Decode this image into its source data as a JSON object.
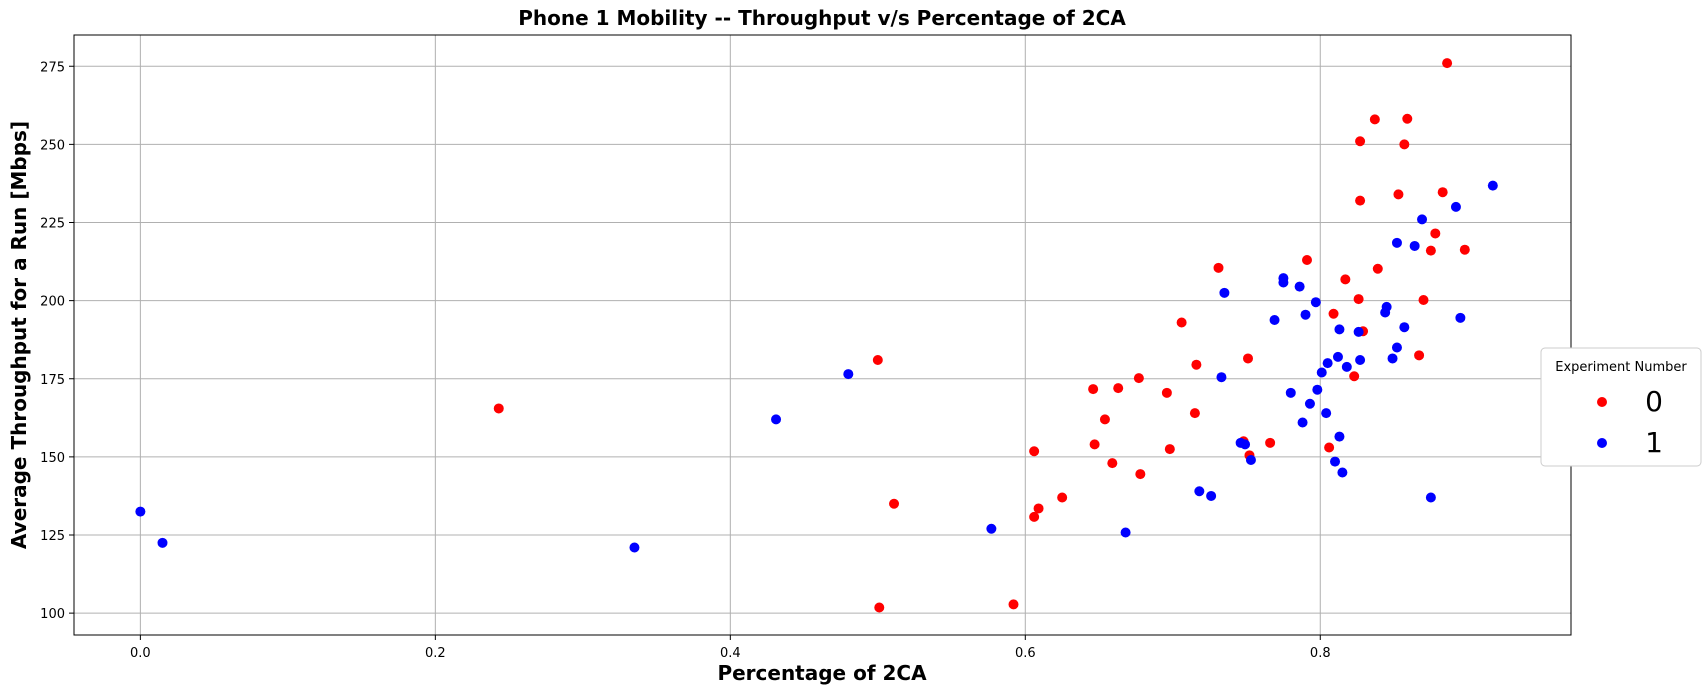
{
  "chart_data": {
    "type": "scatter",
    "title": "Phone 1 Mobility -- Throughput v/s Percentage of 2CA",
    "xlabel": "Percentage of 2CA",
    "ylabel": "Average Throughput for a Run [Mbps]",
    "xlim": [
      -0.045,
      0.97
    ],
    "ylim": [
      93,
      285
    ],
    "xticks": [
      0.0,
      0.2,
      0.4,
      0.6,
      0.8
    ],
    "xtick_labels": [
      "0.0",
      "0.2",
      "0.4",
      "0.6",
      "0.8"
    ],
    "yticks": [
      100,
      125,
      150,
      175,
      200,
      225,
      250,
      275
    ],
    "ytick_labels": [
      "100",
      "125",
      "150",
      "175",
      "200",
      "225",
      "250",
      "275"
    ],
    "grid": true,
    "legend": {
      "title": "Experiment Number",
      "placement": "center-right outside"
    },
    "series": [
      {
        "name": "0",
        "color": "#ff0000",
        "points": [
          [
            0.243,
            165.5
          ],
          [
            0.5,
            181.0
          ],
          [
            0.501,
            101.8
          ],
          [
            0.511,
            135.0
          ],
          [
            0.592,
            102.8
          ],
          [
            0.606,
            151.8
          ],
          [
            0.606,
            130.8
          ],
          [
            0.609,
            133.5
          ],
          [
            0.625,
            137.0
          ],
          [
            0.646,
            171.7
          ],
          [
            0.647,
            154.0
          ],
          [
            0.654,
            162.0
          ],
          [
            0.659,
            148.0
          ],
          [
            0.663,
            172.0
          ],
          [
            0.677,
            175.2
          ],
          [
            0.678,
            144.5
          ],
          [
            0.696,
            170.5
          ],
          [
            0.698,
            152.5
          ],
          [
            0.706,
            193.0
          ],
          [
            0.715,
            164.0
          ],
          [
            0.716,
            179.5
          ],
          [
            0.731,
            210.5
          ],
          [
            0.748,
            155.0
          ],
          [
            0.751,
            181.5
          ],
          [
            0.752,
            150.5
          ],
          [
            0.766,
            154.5
          ],
          [
            0.791,
            213.0
          ],
          [
            0.806,
            153.0
          ],
          [
            0.809,
            195.8
          ],
          [
            0.817,
            206.8
          ],
          [
            0.823,
            175.8
          ],
          [
            0.826,
            200.5
          ],
          [
            0.827,
            251.0
          ],
          [
            0.827,
            232.0
          ],
          [
            0.829,
            190.2
          ],
          [
            0.837,
            258.0
          ],
          [
            0.839,
            210.2
          ],
          [
            0.853,
            234.0
          ],
          [
            0.857,
            250.0
          ],
          [
            0.859,
            258.2
          ],
          [
            0.867,
            182.5
          ],
          [
            0.87,
            200.2
          ],
          [
            0.875,
            216.0
          ],
          [
            0.878,
            221.5
          ],
          [
            0.883,
            234.7
          ],
          [
            0.886,
            276.0
          ],
          [
            0.898,
            216.3
          ]
        ]
      },
      {
        "name": "1",
        "color": "#0000ff",
        "points": [
          [
            0.0,
            132.5
          ],
          [
            0.015,
            122.5
          ],
          [
            0.335,
            121.0
          ],
          [
            0.431,
            162.0
          ],
          [
            0.48,
            176.5
          ],
          [
            0.577,
            127.0
          ],
          [
            0.668,
            125.8
          ],
          [
            0.718,
            139.0
          ],
          [
            0.726,
            137.5
          ],
          [
            0.733,
            175.5
          ],
          [
            0.735,
            202.5
          ],
          [
            0.746,
            154.5
          ],
          [
            0.749,
            154.0
          ],
          [
            0.753,
            149.0
          ],
          [
            0.769,
            193.8
          ],
          [
            0.775,
            207.2
          ],
          [
            0.775,
            205.8
          ],
          [
            0.78,
            170.5
          ],
          [
            0.786,
            204.5
          ],
          [
            0.788,
            161.0
          ],
          [
            0.79,
            195.5
          ],
          [
            0.793,
            167.0
          ],
          [
            0.797,
            199.5
          ],
          [
            0.798,
            171.5
          ],
          [
            0.801,
            177.0
          ],
          [
            0.804,
            164.0
          ],
          [
            0.805,
            180.0
          ],
          [
            0.81,
            148.5
          ],
          [
            0.812,
            182.0
          ],
          [
            0.813,
            156.5
          ],
          [
            0.813,
            190.8
          ],
          [
            0.815,
            145.0
          ],
          [
            0.818,
            178.8
          ],
          [
            0.826,
            190.0
          ],
          [
            0.827,
            181.0
          ],
          [
            0.844,
            196.2
          ],
          [
            0.845,
            198.0
          ],
          [
            0.849,
            181.5
          ],
          [
            0.852,
            218.5
          ],
          [
            0.852,
            185.0
          ],
          [
            0.857,
            191.5
          ],
          [
            0.864,
            217.5
          ],
          [
            0.869,
            226.0
          ],
          [
            0.875,
            137.0
          ],
          [
            0.892,
            230.0
          ],
          [
            0.895,
            194.5
          ],
          [
            0.917,
            236.8
          ]
        ]
      }
    ]
  }
}
